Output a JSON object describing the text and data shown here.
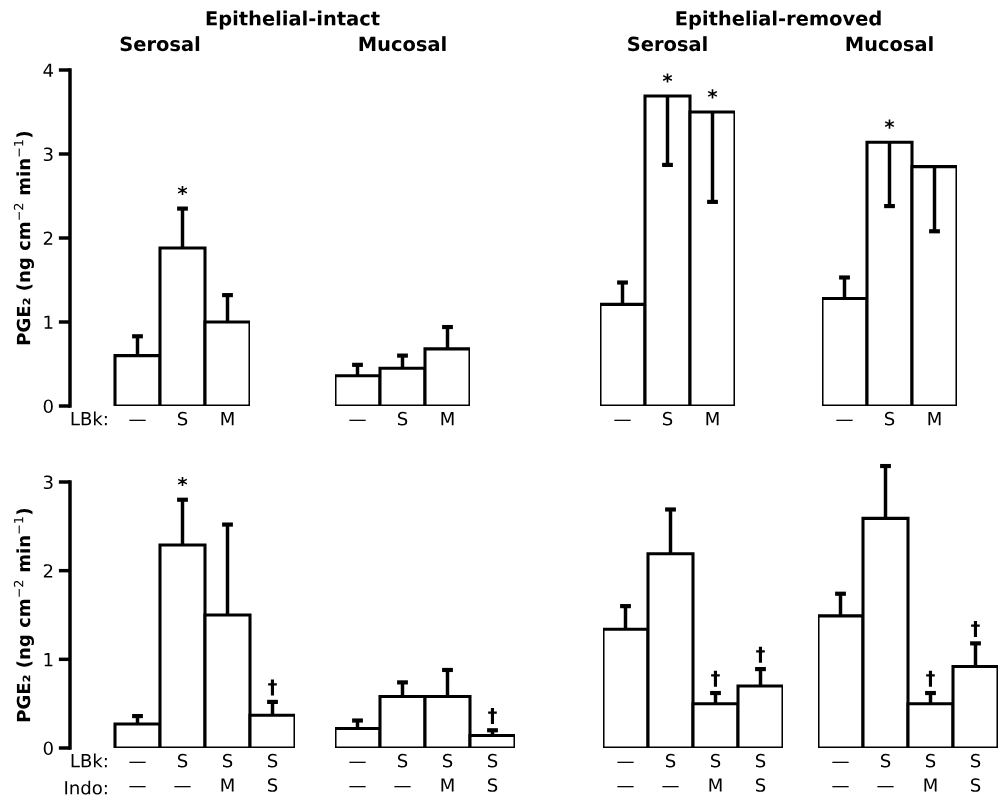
{
  "chart_data": [
    {
      "type": "bar",
      "title": "Epithelial-intact",
      "subtitle": "Serosal",
      "ylabel": "PGE₂ (ng cm$^{−2}$ min$^{−1}$)",
      "categories": [
        "—",
        "S",
        "M"
      ],
      "annotations": [
        "LBk:"
      ],
      "ylim": [
        0,
        4
      ],
      "yticks": [
        0,
        1,
        2,
        3,
        4
      ],
      "grid": false,
      "series": [
        {
          "color": "#ffffff",
          "values": [
            0.6,
            1.88,
            1.0
          ],
          "errors": [
            [
              0.6,
              0.83
            ],
            [
              1.88,
              2.35
            ],
            [
              1.0,
              1.32
            ]
          ],
          "value_labels": [
            null,
            "*",
            null
          ]
        }
      ]
    },
    {
      "type": "bar",
      "title": "Mucosal",
      "categories": [
        "—",
        "S",
        "M"
      ],
      "ylim": [
        0,
        4
      ],
      "tick_labels": "x",
      "grid": false,
      "series": [
        {
          "color": "#ffffff",
          "values": [
            0.36,
            0.45,
            0.68
          ],
          "errors": [
            [
              0.36,
              0.49
            ],
            [
              0.45,
              0.6
            ],
            [
              0.68,
              0.94
            ]
          ]
        }
      ]
    },
    {
      "type": "bar",
      "title": "Epithelial-removed",
      "subtitle": "Serosal",
      "categories": [
        "—",
        "S",
        "M"
      ],
      "ylim": [
        0,
        4
      ],
      "tick_labels": "x",
      "grid": false,
      "series": [
        {
          "color": "#ffffff",
          "values": [
            1.21,
            3.69,
            3.5
          ],
          "errors": [
            [
              1.21,
              1.47
            ],
            [
              2.87,
              3.69
            ],
            [
              2.43,
              3.5
            ]
          ],
          "value_labels": [
            null,
            "*",
            "*"
          ]
        }
      ]
    },
    {
      "type": "bar",
      "title": "Mucosal",
      "categories": [
        "—",
        "S",
        "M"
      ],
      "ylim": [
        0,
        4
      ],
      "tick_labels": "x",
      "grid": false,
      "series": [
        {
          "color": "#ffffff",
          "values": [
            1.28,
            3.14,
            2.85
          ],
          "errors": [
            [
              1.28,
              1.53
            ],
            [
              2.38,
              3.14
            ],
            [
              2.08,
              2.85
            ]
          ],
          "value_labels": [
            null,
            "*",
            null
          ]
        }
      ]
    },
    {
      "type": "bar",
      "ylabel": "PGE₂ (ng cm$^{−2}$ min$^{−1}$)",
      "categories": [
        "—\n—",
        "S\n—",
        "S\nM",
        "S\nS"
      ],
      "annotations": [
        "LBk:",
        "Indo:"
      ],
      "ylim": [
        0,
        3
      ],
      "yticks": [
        0,
        1,
        2,
        3
      ],
      "grid": false,
      "series": [
        {
          "color": "#ffffff",
          "values": [
            0.27,
            2.29,
            1.5,
            0.37
          ],
          "errors": [
            [
              0.27,
              0.36
            ],
            [
              2.29,
              2.8
            ],
            [
              1.5,
              2.52
            ],
            [
              0.37,
              0.52
            ]
          ],
          "value_labels": [
            null,
            "*",
            null,
            "†"
          ]
        }
      ]
    },
    {
      "type": "bar",
      "categories": [
        "—\n—",
        "S\n—",
        "S\nM",
        "S\nS"
      ],
      "ylim": [
        0,
        3
      ],
      "tick_labels": "x",
      "grid": false,
      "series": [
        {
          "color": "#ffffff",
          "values": [
            0.22,
            0.58,
            0.58,
            0.14
          ],
          "errors": [
            [
              0.22,
              0.31
            ],
            [
              0.58,
              0.74
            ],
            [
              0.58,
              0.88
            ],
            [
              0.14,
              0.2
            ]
          ],
          "value_labels": [
            null,
            null,
            null,
            "†"
          ]
        }
      ]
    },
    {
      "type": "bar",
      "categories": [
        "—\n—",
        "S\n—",
        "S\nM",
        "S\nS"
      ],
      "ylim": [
        0,
        3
      ],
      "tick_labels": "x",
      "grid": false,
      "series": [
        {
          "color": "#ffffff",
          "values": [
            1.34,
            2.19,
            0.5,
            0.7
          ],
          "errors": [
            [
              1.34,
              1.6
            ],
            [
              2.19,
              2.69
            ],
            [
              0.5,
              0.62
            ],
            [
              0.7,
              0.89
            ]
          ],
          "value_labels": [
            null,
            null,
            "†",
            "†"
          ]
        }
      ]
    },
    {
      "type": "bar",
      "categories": [
        "—\n—",
        "S\n—",
        "S\nM",
        "S\nS"
      ],
      "ylim": [
        0,
        3
      ],
      "tick_labels": "x",
      "grid": false,
      "series": [
        {
          "color": "#ffffff",
          "values": [
            1.49,
            2.59,
            0.5,
            0.92
          ],
          "errors": [
            [
              1.49,
              1.74
            ],
            [
              2.59,
              3.18
            ],
            [
              0.5,
              0.62
            ],
            [
              0.92,
              1.18
            ]
          ],
          "value_labels": [
            null,
            null,
            "†",
            "†"
          ]
        }
      ]
    }
  ]
}
